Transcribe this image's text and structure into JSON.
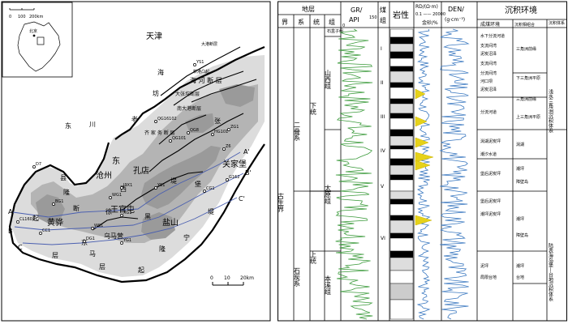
{
  "map": {
    "inset_scale": [
      "0",
      "100",
      "200km"
    ],
    "inset_label": "北京",
    "main_scale": [
      "0",
      "10",
      "20km"
    ],
    "places": {
      "tianjin": "天津",
      "cangzhou": "沧州",
      "huanghua": "黄骅",
      "yanshan": "盐山",
      "kongdian": "孔店",
      "wangguantun": "王官屯",
      "wumaying": "乌马营",
      "nandapu": "南大港",
      "guanjiapu": "关家堡",
      "cangxian": "沧县",
      "lao": "老",
      "jing": "经",
      "shu_dong": "东",
      "zhang": "张",
      "shi": "石",
      "ji": "坊",
      "hai": "海"
    },
    "structures": {
      "xin_gang": "新港凸起",
      "dagang": "大港断层",
      "haihe": "海 河 断 层",
      "dazhangtuo": "大张坨断层",
      "nan_dagang_fault": "南大港断层",
      "qijia": "齐 家 务 断 层",
      "chuan": "川",
      "di": "堤",
      "cang_rise": "沧 县 隆 起",
      "dong_guang": "东 光",
      "wu_lu": "乌马营",
      "xu": "徐",
      "hei": "黑",
      "long": "隆",
      "qi": "起",
      "duan": "断",
      "ceng": "层",
      "xi": "西",
      "ning": "宁",
      "dong": "东",
      "qu": "区",
      "zhuang": "庄",
      "bao": "堡",
      "ma": "马",
      "xian": "县",
      "zhen": "镇"
    },
    "wells": [
      "YS1",
      "QG16102",
      "QG8",
      "QG101",
      "ZG1",
      "HG101",
      "G162",
      "CG1",
      "YS1",
      "J9X1",
      "WG1",
      "XG1",
      "WS1",
      "BG1",
      "D7",
      "CL1601",
      "CC1",
      "DG1",
      "YG1",
      "Z6"
    ],
    "line_labels": [
      "A",
      "A'",
      "B",
      "B'",
      "C",
      "C'"
    ]
  },
  "column": {
    "header": {
      "diceng": "地层",
      "jie": "界",
      "xi": "系",
      "tong": "统",
      "zu": "组",
      "gr_label": "GR/",
      "gr_unit": "API",
      "gr_min": "0",
      "gr_max": "150",
      "coal_label": "煤",
      "coal_label2": "组",
      "lithology": "岩性",
      "rd_label": "RD/(Ω·m)",
      "rd_range": "0.1 —— 20000",
      "gold_label": "金砂/%",
      "den_label": "DEN/",
      "den_unit": "(g·cm⁻³)",
      "env_title": "沉积环境",
      "env_sub": "成煤环境",
      "env_sub2": "沉积相组合",
      "env_sub3": "沉积体系"
    },
    "jie_value": "古生界",
    "xi_values": [
      "二叠系",
      "石炭系"
    ],
    "tong_values": [
      "下统",
      "上统"
    ],
    "zu_values": [
      "山西组",
      "太原组",
      "本溪组"
    ],
    "coal_groups": [
      "I",
      "II",
      "III",
      "IV",
      "V",
      "VI"
    ],
    "top_label": "石盒子组",
    "env_coal": [
      "水下分流河道",
      "支流间湾",
      "泥炭沼泽",
      "支流间湾",
      "分流间湾",
      "河口坝",
      "泥炭沼泽",
      "分流河道",
      "潟湖泥炭坪",
      "潮汐水道",
      "堡后泥炭坪",
      "堡后泥炭坪",
      "潮坪泥炭坪",
      "泥坪",
      "局限台地"
    ],
    "env_facies": [
      "三角洲前缘",
      "下三角洲平原",
      "三角洲前缘",
      "上三角洲平原",
      "潟湖",
      "潮坪",
      "障壁岛",
      "潮坪",
      "障壁岛",
      "潮坪",
      "台地"
    ],
    "env_system": [
      "浅水三角洲沉积体系",
      "陆表海岛堡—台地沉积体系"
    ]
  }
}
